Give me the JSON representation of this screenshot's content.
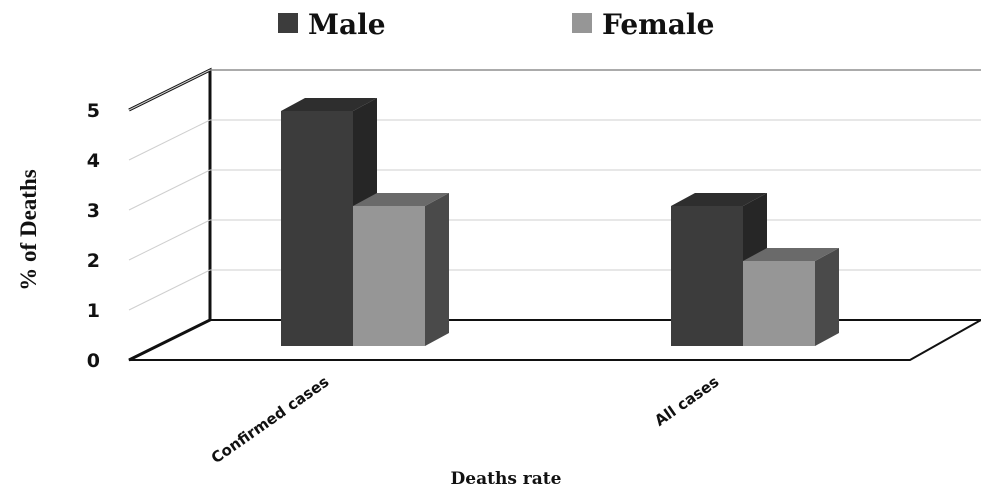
{
  "chart_data": {
    "type": "bar",
    "title": "",
    "xlabel": "Deaths rate",
    "ylabel": "% of Deaths",
    "categories": [
      "Confirmed cases",
      "All cases"
    ],
    "series": [
      {
        "name": "Male",
        "values": [
          4.7,
          2.8
        ],
        "color": "#3c3c3c",
        "side_color": "#262626",
        "top_color": "#2e2e2e"
      },
      {
        "name": "Female",
        "values": [
          2.8,
          1.7
        ],
        "color": "#969696",
        "side_color": "#4a4a4a",
        "top_color": "#6a6a6a"
      }
    ],
    "yticks": [
      "0",
      "1",
      "2",
      "3",
      "4",
      "5"
    ],
    "ylim": [
      0,
      5
    ],
    "grid": true,
    "legend_position": "top"
  }
}
